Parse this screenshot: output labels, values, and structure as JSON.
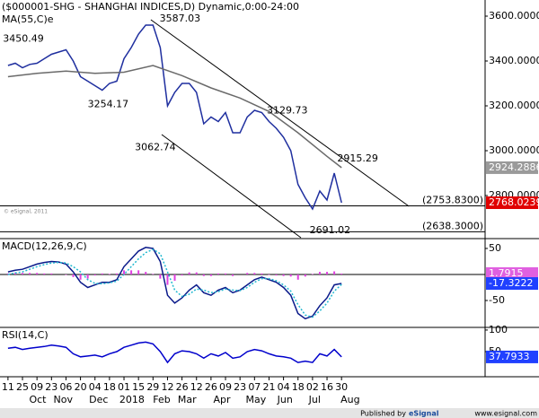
{
  "chart_data": [
    {
      "type": "line",
      "title": "($000001-SHG - SHANGHAI INDICES,D) Dynamic,0:00-24:00",
      "watermark": "© eSignal, 2011",
      "xlim": [
        -1.1,
        65.8
      ],
      "ylim": [
        2608,
        3672
      ],
      "yticks": [
        {
          "value": 3600,
          "label": "3600.0000"
        },
        {
          "value": 3400,
          "label": "3400.0000"
        },
        {
          "value": 3200,
          "label": "3200.0000"
        },
        {
          "value": 3000,
          "label": "3000.0000"
        },
        {
          "value": 2800,
          "label": "2800.0000"
        }
      ],
      "series": [
        {
          "color": "#1f2f9f",
          "last_box_color": "#e00000",
          "x": [
            0,
            1,
            2,
            3,
            4,
            5,
            6,
            7,
            8,
            9,
            10,
            11,
            12,
            13,
            14,
            15,
            16,
            17,
            18,
            19,
            20,
            21,
            22,
            23,
            24,
            25,
            26,
            27,
            28,
            29,
            30,
            31,
            32,
            33,
            34,
            35,
            36,
            37,
            38,
            39,
            40,
            41,
            42,
            43,
            44,
            45,
            46
          ],
          "values": [
            3380,
            3390,
            3370,
            3385,
            3390,
            3410,
            3430,
            3440,
            3450,
            3400,
            3330,
            3310,
            3290,
            3270,
            3300,
            3310,
            3410,
            3460,
            3520,
            3560,
            3560,
            3460,
            3200,
            3260,
            3300,
            3300,
            3260,
            3120,
            3150,
            3130,
            3170,
            3080,
            3080,
            3150,
            3180,
            3170,
            3130,
            3100,
            3060,
            3000,
            2850,
            2790,
            2740,
            2820,
            2780,
            2900,
            2768.0239
          ]
        },
        {
          "name": "MA(55,C)e",
          "color": "#6a6a6a",
          "last_box_color": "#9a9a9a",
          "x": [
            0,
            4,
            8,
            12,
            16,
            20,
            24,
            28,
            32,
            36,
            40,
            44,
            46
          ],
          "values": [
            3330,
            3345,
            3355,
            3345,
            3350,
            3380,
            3335,
            3280,
            3235,
            3175,
            3080,
            2975,
            2924.2886
          ]
        }
      ],
      "hlines": [
        {
          "value": 2753.83,
          "label": "(2753.8300)"
        },
        {
          "value": 2638.3,
          "label": "(2638.3000)"
        }
      ],
      "trendlines": [
        {
          "x": [
            19.7,
            55.3
          ],
          "y": [
            3584,
            2752
          ]
        },
        {
          "x": [
            21.2,
            40.4
          ],
          "y": [
            3072,
            2612
          ]
        }
      ],
      "annotations": [
        {
          "value": 3587.03,
          "x": 20.9,
          "placement": "on"
        },
        {
          "value": 3450.49,
          "x": -0.7,
          "placement": "above"
        },
        {
          "value": 3254.17,
          "x": 11.0,
          "placement": "below"
        },
        {
          "value": 3062.74,
          "x": 17.5,
          "placement": "below"
        },
        {
          "value": 3129.73,
          "x": 35.7,
          "placement": "above"
        },
        {
          "value": 2915.29,
          "x": 45.4,
          "placement": "above"
        },
        {
          "value": 2691.02,
          "x": 41.6,
          "placement": "below"
        }
      ]
    },
    {
      "type": "line",
      "title": "MACD(12,26,9,C)",
      "xlim": [
        -1.1,
        65.8
      ],
      "ylim": [
        -101.7,
        67.2
      ],
      "yticks": [
        50,
        -50
      ],
      "zero_line": true,
      "x": [
        0,
        1,
        2,
        3,
        4,
        5,
        6,
        7,
        8,
        9,
        10,
        11,
        12,
        13,
        14,
        15,
        16,
        17,
        18,
        19,
        20,
        21,
        22,
        23,
        24,
        25,
        26,
        27,
        28,
        29,
        30,
        31,
        32,
        33,
        34,
        35,
        36,
        37,
        38,
        39,
        40,
        41,
        42,
        43,
        44,
        45,
        46
      ],
      "series": [
        {
          "style": "bar",
          "color": "#e040e0",
          "last_box_color": "#e060e0",
          "values": [
            2,
            3,
            3,
            3,
            3,
            2,
            2,
            0,
            -1,
            -5,
            -10,
            -8,
            -2,
            2,
            1,
            2,
            8,
            8,
            8,
            5,
            1,
            -8,
            -20,
            -12,
            -2,
            4,
            4,
            -3,
            -3,
            2,
            2,
            -3,
            0,
            3,
            3,
            2,
            -1,
            -2,
            -3,
            -4,
            -10,
            -4,
            1,
            5,
            5,
            6,
            1.7915
          ]
        },
        {
          "color": "#0a1a8a",
          "last_box_color": "#2040ff",
          "values": [
            5,
            8,
            10,
            15,
            20,
            23,
            25,
            24,
            20,
            5,
            -15,
            -25,
            -20,
            -15,
            -15,
            -10,
            15,
            30,
            45,
            52,
            50,
            25,
            -40,
            -55,
            -45,
            -30,
            -20,
            -35,
            -40,
            -30,
            -25,
            -35,
            -30,
            -20,
            -10,
            -5,
            -10,
            -15,
            -25,
            -40,
            -75,
            -85,
            -80,
            -60,
            -45,
            -20,
            -17.3222
          ]
        },
        {
          "color": "#20b8d0",
          "dashed": true,
          "values": [
            0,
            3,
            5,
            10,
            15,
            19,
            22,
            23,
            22,
            15,
            5,
            -10,
            -17,
            -18,
            -16,
            -13,
            0,
            15,
            30,
            42,
            48,
            40,
            5,
            -30,
            -42,
            -38,
            -28,
            -30,
            -35,
            -33,
            -28,
            -30,
            -31,
            -25,
            -15,
            -8,
            -8,
            -12,
            -20,
            -32,
            -58,
            -78,
            -82,
            -70,
            -55,
            -32,
            -19.1
          ]
        }
      ]
    },
    {
      "type": "line",
      "title": "RSI(14,C)",
      "xlim": [
        -1.1,
        65.8
      ],
      "ylim": [
        -8,
        104
      ],
      "yticks": [
        100,
        50
      ],
      "x": [
        0,
        1,
        2,
        3,
        4,
        5,
        6,
        7,
        8,
        9,
        10,
        11,
        12,
        13,
        14,
        15,
        16,
        17,
        18,
        19,
        20,
        21,
        22,
        23,
        24,
        25,
        26,
        27,
        28,
        29,
        30,
        31,
        32,
        33,
        34,
        35,
        36,
        37,
        38,
        39,
        40,
        41,
        42,
        43,
        44,
        45,
        46
      ],
      "series": [
        {
          "color": "#0000cc",
          "last_box_color": "#2040ff",
          "values": [
            58,
            60,
            55,
            58,
            60,
            62,
            65,
            63,
            60,
            45,
            38,
            40,
            42,
            38,
            45,
            50,
            60,
            65,
            70,
            72,
            68,
            50,
            25,
            45,
            52,
            50,
            45,
            35,
            45,
            40,
            48,
            35,
            38,
            50,
            55,
            52,
            45,
            40,
            38,
            35,
            25,
            28,
            25,
            45,
            40,
            55,
            37.7933
          ]
        }
      ],
      "xticks": [
        {
          "value": 0,
          "label": "11"
        },
        {
          "value": 2,
          "label": "25"
        },
        {
          "value": 4,
          "label": "09"
        },
        {
          "value": 6,
          "label": "23"
        },
        {
          "value": 8,
          "label": "06"
        },
        {
          "value": 10,
          "label": "20"
        },
        {
          "value": 12,
          "label": "04"
        },
        {
          "value": 14,
          "label": "18"
        },
        {
          "value": 16,
          "label": "01"
        },
        {
          "value": 18,
          "label": "15"
        },
        {
          "value": 20,
          "label": "29"
        },
        {
          "value": 22,
          "label": "12"
        },
        {
          "value": 24,
          "label": "26"
        },
        {
          "value": 26,
          "label": "12"
        },
        {
          "value": 28,
          "label": "26"
        },
        {
          "value": 30,
          "label": "09"
        },
        {
          "value": 32,
          "label": "23"
        },
        {
          "value": 34,
          "label": "07"
        },
        {
          "value": 36,
          "label": "21"
        },
        {
          "value": 38,
          "label": "04"
        },
        {
          "value": 40,
          "label": "18"
        },
        {
          "value": 42,
          "label": "02"
        },
        {
          "value": 44,
          "label": "16"
        },
        {
          "value": 46,
          "label": "30"
        }
      ],
      "month_ticks": [
        {
          "value": 4.1,
          "label": "Oct"
        },
        {
          "value": 7.6,
          "label": "Nov"
        },
        {
          "value": 12.5,
          "label": "Dec"
        },
        {
          "value": 17.1,
          "label": "2018"
        },
        {
          "value": 21.2,
          "label": "Feb"
        },
        {
          "value": 24.7,
          "label": "Mar"
        },
        {
          "value": 29.5,
          "label": "Apr"
        },
        {
          "value": 34.2,
          "label": "May"
        },
        {
          "value": 38.2,
          "label": "Jun"
        },
        {
          "value": 42.3,
          "label": "Jul"
        },
        {
          "value": 47.2,
          "label": "Aug"
        }
      ]
    }
  ],
  "footer": {
    "publisher": "Published by",
    "brand": "eSignal",
    "url": "www.esignal.com"
  }
}
